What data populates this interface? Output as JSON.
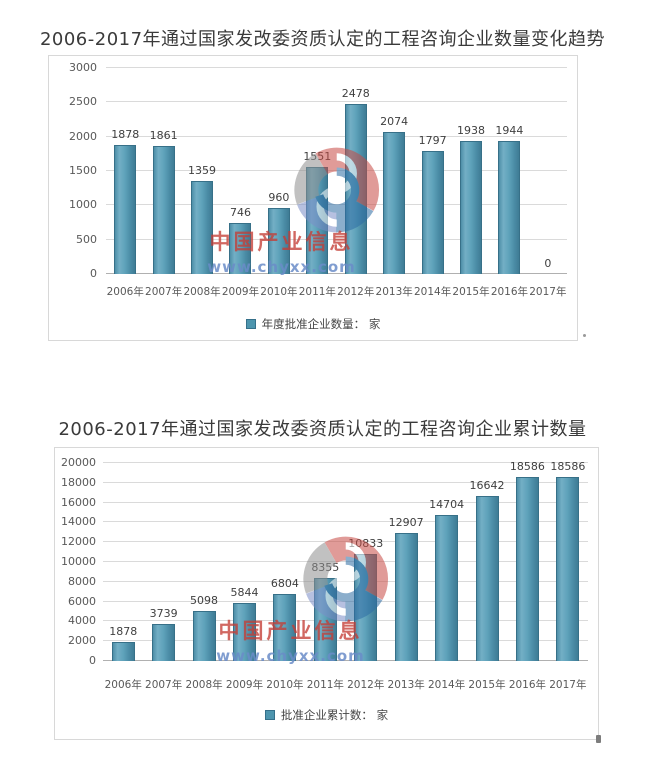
{
  "watermark": {
    "line1": "中国产业信息",
    "line2": "www.chyxx.com"
  },
  "chart_data": [
    {
      "type": "bar",
      "title": "2006-2017年通过国家发改委资质认定的工程咨询企业数量变化趋势",
      "categories": [
        "2006年",
        "2007年",
        "2008年",
        "2009年",
        "2010年",
        "2011年",
        "2012年",
        "2013年",
        "2014年",
        "2015年",
        "2016年",
        "2017年"
      ],
      "values": [
        1878,
        1861,
        1359,
        746,
        960,
        1551,
        2478,
        2074,
        1797,
        1938,
        1944,
        0
      ],
      "legend": "年度批准企业数量： 家",
      "xlabel": "",
      "ylabel": "",
      "ylim": [
        0,
        3000
      ],
      "ytick_step": 500,
      "grid": true,
      "value_labels": true,
      "legend_position": "bottom",
      "bar_color": "#4E96AD"
    },
    {
      "type": "bar",
      "title": "2006-2017年通过国家发改委资质认定的工程咨询企业累计数量",
      "categories": [
        "2006年",
        "2007年",
        "2008年",
        "2009年",
        "2010年",
        "2011年",
        "2012年",
        "2013年",
        "2014年",
        "2015年",
        "2016年",
        "2017年"
      ],
      "values": [
        1878,
        3739,
        5098,
        5844,
        6804,
        8355,
        10833,
        12907,
        14704,
        16642,
        18586,
        18586
      ],
      "legend": "批准企业累计数： 家",
      "xlabel": "",
      "ylabel": "",
      "ylim": [
        0,
        20000
      ],
      "ytick_step": 2000,
      "grid": true,
      "value_labels": true,
      "legend_position": "bottom",
      "bar_color": "#4E96AD"
    }
  ],
  "colors": {
    "bar": "#4E96AD",
    "bar_border": "#377088",
    "gridline": "#DADADA",
    "axis_text": "#595959",
    "value_text": "#3F3F3F",
    "title_text": "#3A3A3A",
    "chart_border": "#D8D8D8",
    "watermark_red": "#C43E36",
    "watermark_blue": "#6A8CC8"
  }
}
